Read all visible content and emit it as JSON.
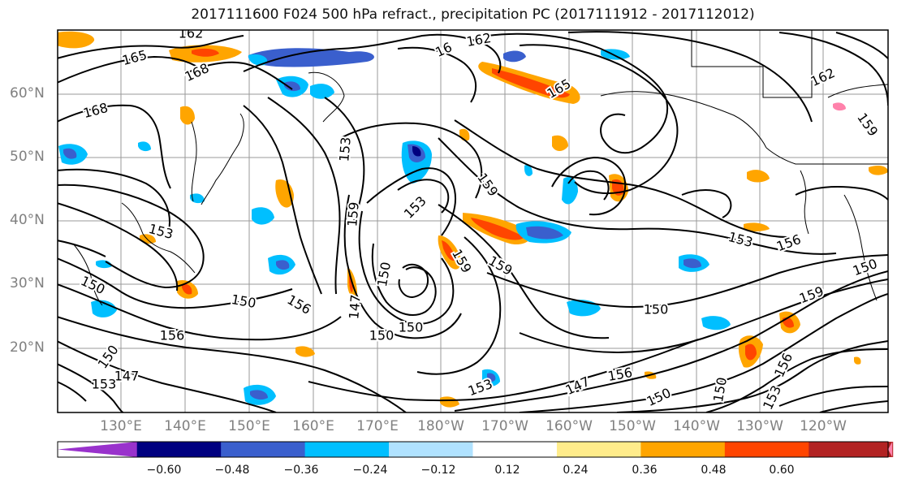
{
  "title": "2017111600 F024 500 hPa refract., precipitation PC (2017111912 - 2017112012)",
  "latitude_labels": [
    "60°N",
    "50°N",
    "40°N",
    "30°N",
    "20°N"
  ],
  "longitude_labels": [
    "130°E",
    "140°E",
    "150°E",
    "160°E",
    "170°E",
    "180°W",
    "170°W",
    "160°W",
    "150°W",
    "140°W",
    "130°W",
    "120°W"
  ],
  "contour_labels": [
    "162",
    "165",
    "168",
    "168",
    "162",
    "16",
    "165",
    "162",
    "159",
    "153",
    "159",
    "153",
    "159",
    "153",
    "153",
    "156",
    "150",
    "159",
    "159",
    "150",
    "150",
    "156",
    "150",
    "156",
    "147",
    "150",
    "150",
    "150",
    "159",
    "150",
    "147",
    "153",
    "153",
    "156",
    "147",
    "150",
    "150",
    "153",
    "156"
  ],
  "colorbar": {
    "ticks": [
      "−0.60",
      "−0.48",
      "−0.36",
      "−0.24",
      "−0.12",
      "0.12",
      "0.24",
      "0.36",
      "0.48",
      "0.60"
    ],
    "colors": [
      "#9932cc",
      "#000080",
      "#3a5fcd",
      "#00bfff",
      "#b0e2ff",
      "#ffffff",
      "#ffec8b",
      "#ffa500",
      "#ff4500",
      "#b22222",
      "#ff82ab"
    ]
  },
  "colors": {
    "gridline": "#9a9a9a",
    "contour": "#000000",
    "axis_label": "#808080"
  }
}
